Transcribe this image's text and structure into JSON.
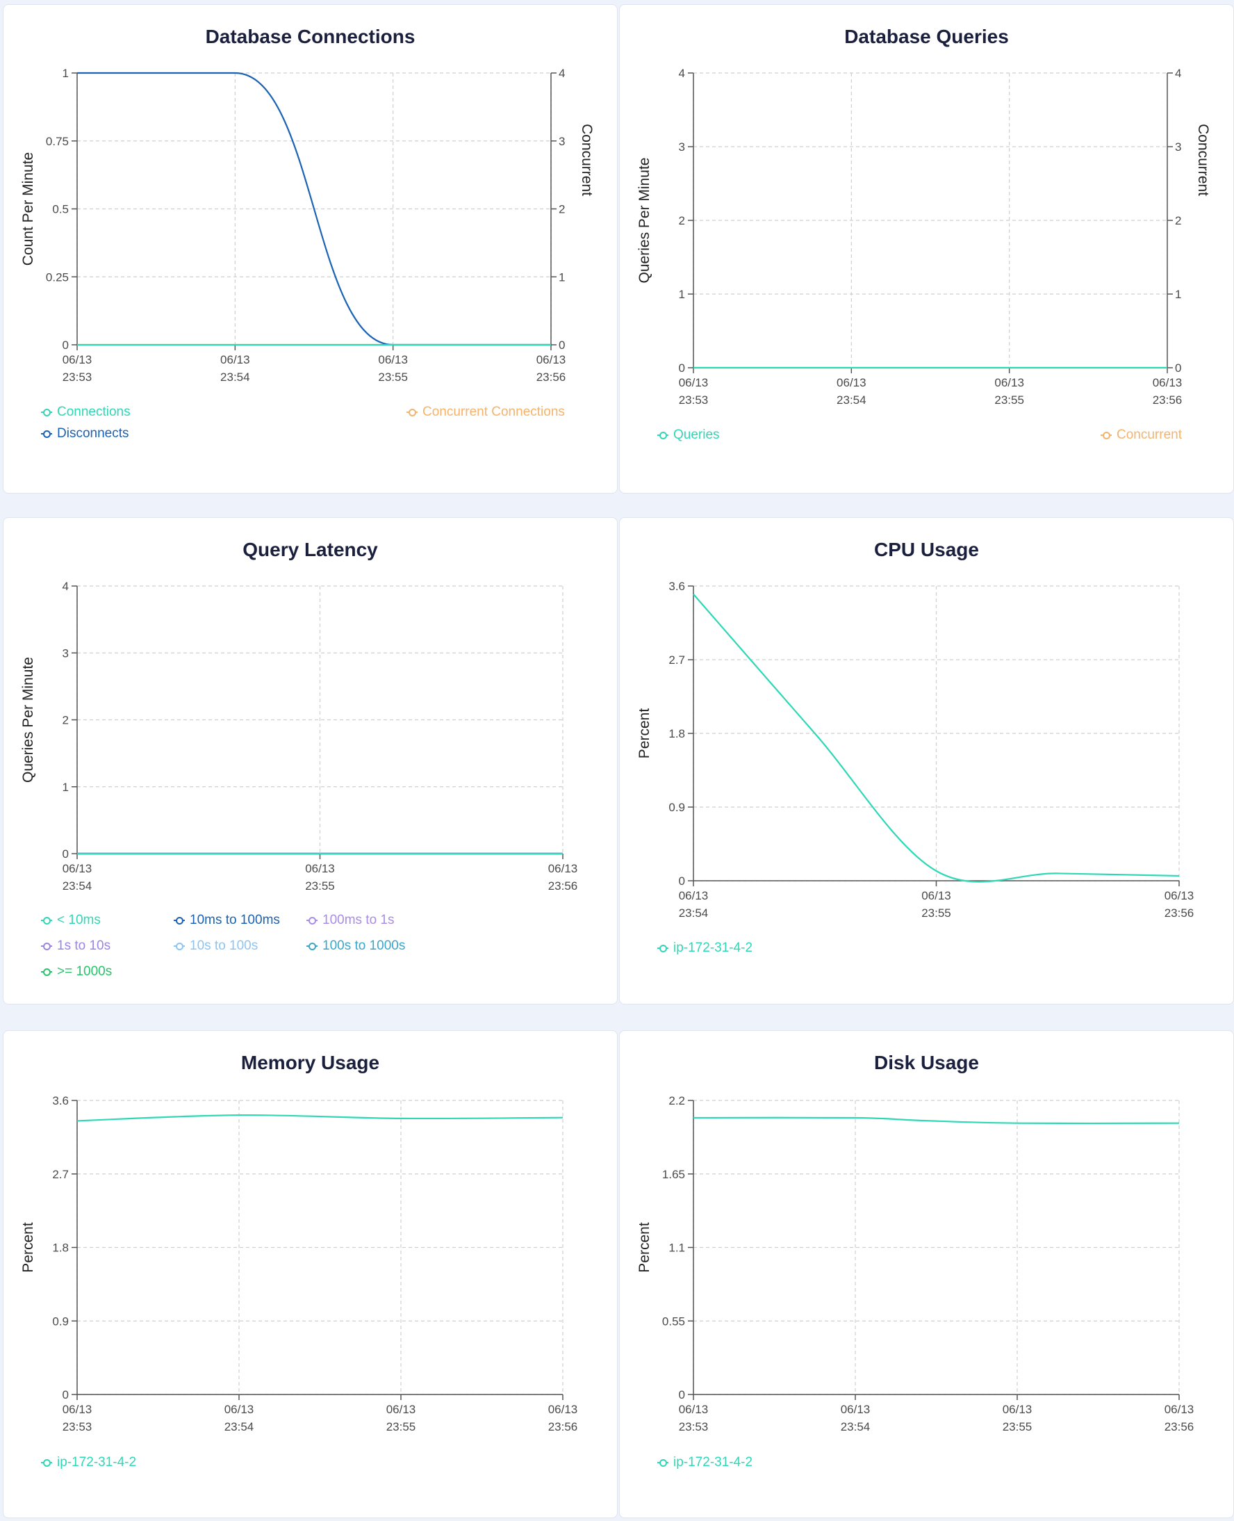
{
  "chart_data": [
    {
      "id": "conn",
      "type": "line",
      "title": "Database Connections",
      "ylabel": "Count Per Minute",
      "y2label": "Concurrent",
      "ylim": [
        0,
        1
      ],
      "yticks": [
        "0",
        "0.25",
        "0.5",
        "0.75",
        "1"
      ],
      "y2lim": [
        0,
        4
      ],
      "y2ticks": [
        "0",
        "1",
        "2",
        "3",
        "4"
      ],
      "xticks": [
        [
          "06/13",
          "23:53"
        ],
        [
          "06/13",
          "23:54"
        ],
        [
          "06/13",
          "23:55"
        ],
        [
          "06/13",
          "23:56"
        ]
      ],
      "grid": true,
      "series": [
        {
          "name": "Connections",
          "color": "#2ed8b6",
          "axis": "left",
          "x": [
            0,
            3
          ],
          "y": [
            0,
            0
          ]
        },
        {
          "name": "Disconnects",
          "color": "#1a62b4",
          "axis": "left",
          "x": [
            0,
            1,
            2,
            3
          ],
          "y": [
            1,
            1,
            0,
            0
          ],
          "curve": "smooth"
        },
        {
          "name": "Concurrent Connections",
          "color": "#f5b36b",
          "axis": "right",
          "x": [
            0,
            3
          ],
          "y": [
            0,
            0
          ]
        }
      ]
    },
    {
      "id": "queries",
      "type": "line",
      "title": "Database Queries",
      "ylabel": "Queries Per Minute",
      "y2label": "Concurrent",
      "ylim": [
        0,
        4
      ],
      "yticks": [
        "0",
        "1",
        "2",
        "3",
        "4"
      ],
      "y2lim": [
        0,
        4
      ],
      "y2ticks": [
        "0",
        "1",
        "2",
        "3",
        "4"
      ],
      "xticks": [
        [
          "06/13",
          "23:53"
        ],
        [
          "06/13",
          "23:54"
        ],
        [
          "06/13",
          "23:55"
        ],
        [
          "06/13",
          "23:56"
        ]
      ],
      "grid": true,
      "series": [
        {
          "name": "Queries",
          "color": "#2ed8b6",
          "axis": "left",
          "x": [
            0,
            3
          ],
          "y": [
            0,
            0
          ]
        },
        {
          "name": "Concurrent",
          "color": "#f5b36b",
          "axis": "right",
          "x": [
            0,
            3
          ],
          "y": [
            0,
            0
          ]
        }
      ]
    },
    {
      "id": "latency",
      "type": "line",
      "title": "Query Latency",
      "ylabel": "Queries Per Minute",
      "ylim": [
        0,
        4
      ],
      "yticks": [
        "0",
        "1",
        "2",
        "3",
        "4"
      ],
      "xticks": [
        [
          "06/13",
          "23:54"
        ],
        [
          "06/13",
          "23:55"
        ],
        [
          "06/13",
          "23:56"
        ]
      ],
      "grid": true,
      "series": [
        {
          "name": "< 10ms",
          "color": "#2ed8b6",
          "axis": "left",
          "x": [
            0,
            2
          ],
          "y": [
            0,
            0
          ]
        },
        {
          "name": "10ms to 100ms",
          "color": "#1a62b4",
          "axis": "left",
          "x": [
            0,
            2
          ],
          "y": [
            0,
            0
          ]
        },
        {
          "name": "100ms to 1s",
          "color": "#a98ce8",
          "axis": "left",
          "x": [
            0,
            2
          ],
          "y": [
            0,
            0
          ]
        },
        {
          "name": "1s to 10s",
          "color": "#9c84e6",
          "axis": "left",
          "x": [
            0,
            2
          ],
          "y": [
            0,
            0
          ]
        },
        {
          "name": "10s to 100s",
          "color": "#8fc4f0",
          "axis": "left",
          "x": [
            0,
            2
          ],
          "y": [
            0,
            0
          ]
        },
        {
          "name": "100s to 1000s",
          "color": "#3aa6cc",
          "axis": "left",
          "x": [
            0,
            2
          ],
          "y": [
            0,
            0
          ]
        },
        {
          "name": ">= 1000s",
          "color": "#27c46a",
          "axis": "left",
          "x": [
            0,
            2
          ],
          "y": [
            0,
            0
          ]
        }
      ]
    },
    {
      "id": "cpu",
      "type": "line",
      "title": "CPU Usage",
      "ylabel": "Percent",
      "ylim": [
        0,
        3.6
      ],
      "yticks": [
        "0",
        "0.9",
        "1.8",
        "2.7",
        "3.6"
      ],
      "xticks": [
        [
          "06/13",
          "23:54"
        ],
        [
          "06/13",
          "23:55"
        ],
        [
          "06/13",
          "23:56"
        ]
      ],
      "grid": true,
      "series": [
        {
          "name": "ip-172-31-4-2",
          "color": "#2ed8b6",
          "axis": "left",
          "x": [
            0,
            0.5,
            1,
            1.5,
            2
          ],
          "y": [
            3.5,
            1.8,
            0.12,
            0.09,
            0.06
          ],
          "curve": "smooth"
        }
      ]
    },
    {
      "id": "memory",
      "type": "line",
      "title": "Memory Usage",
      "ylabel": "Percent",
      "ylim": [
        0,
        3.6
      ],
      "yticks": [
        "0",
        "0.9",
        "1.8",
        "2.7",
        "3.6"
      ],
      "xticks": [
        [
          "06/13",
          "23:53"
        ],
        [
          "06/13",
          "23:54"
        ],
        [
          "06/13",
          "23:55"
        ],
        [
          "06/13",
          "23:56"
        ]
      ],
      "grid": true,
      "series": [
        {
          "name": "ip-172-31-4-2",
          "color": "#2ed8b6",
          "axis": "left",
          "x": [
            0,
            1,
            2,
            3
          ],
          "y": [
            3.35,
            3.42,
            3.38,
            3.39
          ],
          "curve": "smooth"
        }
      ]
    },
    {
      "id": "disk",
      "type": "line",
      "title": "Disk Usage",
      "ylabel": "Percent",
      "ylim": [
        0,
        2.2
      ],
      "yticks": [
        "0",
        "0.55",
        "1.1",
        "1.65",
        "2.2"
      ],
      "xticks": [
        [
          "06/13",
          "23:53"
        ],
        [
          "06/13",
          "23:54"
        ],
        [
          "06/13",
          "23:55"
        ],
        [
          "06/13",
          "23:56"
        ]
      ],
      "grid": true,
      "series": [
        {
          "name": "ip-172-31-4-2",
          "color": "#2ed8b6",
          "axis": "left",
          "x": [
            0,
            1,
            1.4,
            2,
            3
          ],
          "y": [
            2.07,
            2.07,
            2.05,
            2.03,
            2.03
          ],
          "curve": "smooth"
        }
      ]
    }
  ]
}
